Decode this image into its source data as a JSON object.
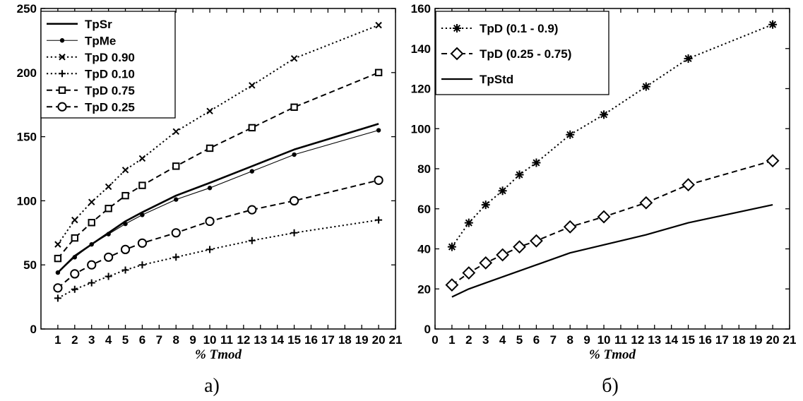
{
  "chart_data": [
    {
      "type": "line",
      "caption": "а)",
      "xlabel": "% Tmod",
      "ylabel": "",
      "xlim": [
        0,
        21
      ],
      "ylim": [
        0,
        250
      ],
      "xticks": [
        1,
        2,
        3,
        4,
        5,
        6,
        7,
        8,
        9,
        10,
        11,
        12,
        13,
        14,
        15,
        16,
        17,
        18,
        19,
        20,
        21
      ],
      "yticks": [
        0,
        50,
        100,
        150,
        200,
        250
      ],
      "legend_position": "top-left",
      "series": [
        {
          "name": "TpSr",
          "style": "solid-thick",
          "marker": "none",
          "x": [
            1,
            2,
            3,
            4,
            5,
            6,
            8,
            10,
            12.5,
            15,
            20
          ],
          "y": [
            44,
            57,
            66,
            75,
            84,
            91,
            104,
            114,
            127,
            140,
            160
          ]
        },
        {
          "name": "TpMe",
          "style": "solid-thin",
          "marker": "dot",
          "x": [
            1,
            2,
            3,
            4,
            5,
            6,
            8,
            10,
            12.5,
            15,
            20
          ],
          "y": [
            44,
            56,
            66,
            74,
            82,
            89,
            101,
            110,
            123,
            136,
            155
          ]
        },
        {
          "name": "TpD 0.90",
          "style": "dotted",
          "marker": "x",
          "x": [
            1,
            2,
            3,
            4,
            5,
            6,
            8,
            10,
            12.5,
            15,
            20
          ],
          "y": [
            66,
            85,
            99,
            111,
            124,
            133,
            154,
            170,
            190,
            211,
            237
          ]
        },
        {
          "name": "TpD 0.10",
          "style": "dotted",
          "marker": "plus",
          "x": [
            1,
            2,
            3,
            4,
            5,
            6,
            8,
            10,
            12.5,
            15,
            20
          ],
          "y": [
            24,
            31,
            36,
            41,
            46,
            50,
            56,
            62,
            69,
            75,
            85
          ]
        },
        {
          "name": "TpD 0.75",
          "style": "dashed",
          "marker": "square",
          "x": [
            1,
            2,
            3,
            4,
            5,
            6,
            8,
            10,
            12.5,
            15,
            20
          ],
          "y": [
            55,
            71,
            83,
            94,
            104,
            112,
            127,
            141,
            157,
            173,
            200
          ]
        },
        {
          "name": "TpD 0.25",
          "style": "dashed",
          "marker": "circle",
          "x": [
            1,
            2,
            3,
            4,
            5,
            6,
            8,
            10,
            12.5,
            15,
            20
          ],
          "y": [
            32,
            43,
            50,
            56,
            62,
            67,
            75,
            84,
            93,
            100,
            116
          ]
        }
      ]
    },
    {
      "type": "line",
      "caption": "б)",
      "xlabel": "% Tmod",
      "ylabel": "",
      "xlim": [
        0,
        21
      ],
      "ylim": [
        0,
        160
      ],
      "xticks": [
        0,
        1,
        2,
        3,
        4,
        5,
        6,
        7,
        8,
        9,
        10,
        11,
        12,
        13,
        14,
        15,
        16,
        17,
        18,
        19,
        20,
        21
      ],
      "yticks": [
        0,
        20,
        40,
        60,
        80,
        100,
        120,
        140,
        160
      ],
      "legend_position": "top-left",
      "series": [
        {
          "name": "TpD (0.1 - 0.9)",
          "style": "dotted",
          "marker": "star",
          "x": [
            1,
            2,
            3,
            4,
            5,
            6,
            8,
            10,
            12.5,
            15,
            20
          ],
          "y": [
            41,
            53,
            62,
            69,
            77,
            83,
            97,
            107,
            121,
            135,
            152
          ]
        },
        {
          "name": "TpD (0.25 - 0.75)",
          "style": "dashed",
          "marker": "diamond",
          "x": [
            1,
            2,
            3,
            4,
            5,
            6,
            8,
            10,
            12.5,
            15,
            20
          ],
          "y": [
            22,
            28,
            33,
            37,
            41,
            44,
            51,
            56,
            63,
            72,
            84
          ]
        },
        {
          "name": "TpStd",
          "style": "solid",
          "marker": "none",
          "x": [
            1,
            2,
            3,
            4,
            5,
            6,
            8,
            10,
            12.5,
            15,
            20
          ],
          "y": [
            16,
            20,
            23,
            26,
            29,
            32,
            38,
            42,
            47,
            53,
            62
          ]
        }
      ]
    }
  ]
}
